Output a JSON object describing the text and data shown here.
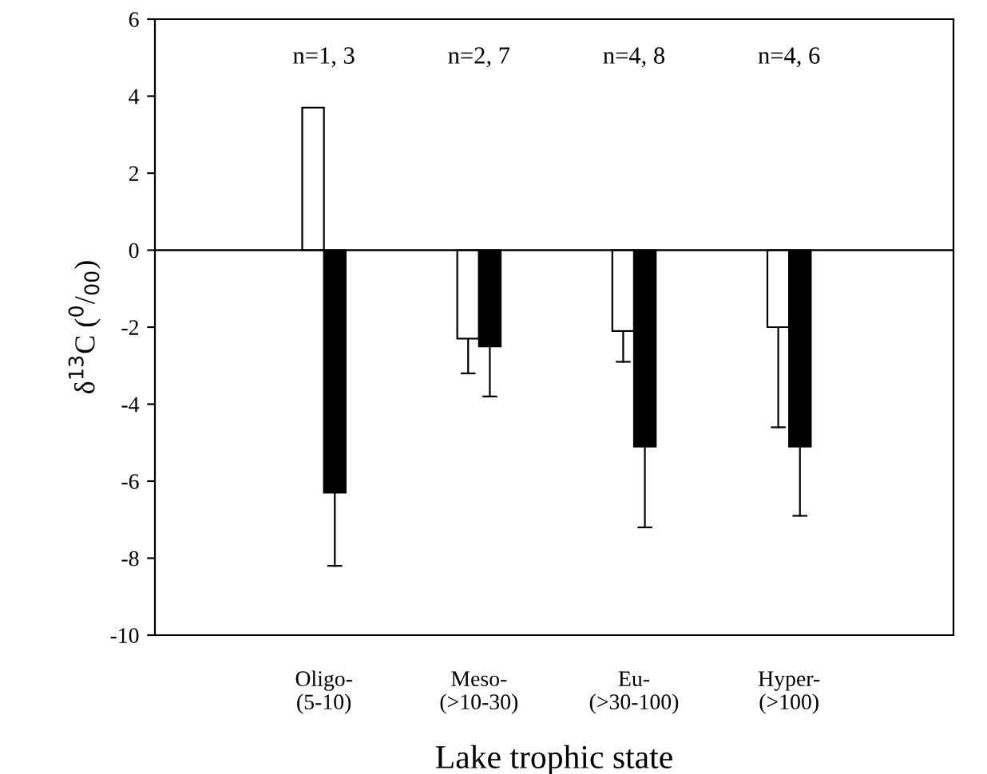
{
  "chart_data": {
    "type": "bar",
    "xlabel": "Lake trophic state",
    "ylabel": "δ$^{13}$C ($^{0}$/$_{00}$)",
    "categories": [
      "Oligo-\n(5-10)",
      "Meso-\n(>10-30)",
      "Eu-\n(>30-100)",
      "Hyper-\n(>100)"
    ],
    "series": [
      {
        "color": "#ffffff",
        "values": [
          3.7,
          -2.3,
          -2.1,
          -2.0
        ],
        "errors": [
          null,
          [
            -3.2,
            -2.3
          ],
          [
            -2.9,
            -2.1
          ],
          [
            -4.6,
            -2.0
          ]
        ]
      },
      {
        "color": "#000000",
        "values": [
          -6.3,
          -2.5,
          -5.1,
          -5.1
        ],
        "errors": [
          [
            -8.2,
            -6.3
          ],
          [
            -3.8,
            -2.5
          ],
          [
            -7.2,
            -5.1
          ],
          [
            -6.9,
            -5.1
          ]
        ]
      }
    ],
    "ylim": [
      -10,
      6
    ],
    "yticks": [
      -10,
      -8,
      -6,
      -4,
      -2,
      0,
      2,
      4,
      6
    ],
    "grid": false,
    "legend": false,
    "ref_lines": [
      {
        "axis": "y",
        "value": 0,
        "color": "#000000"
      }
    ],
    "annotations": [
      "n=1, 3",
      "n=2, 7",
      "n=4, 8",
      "n=4, 6"
    ]
  }
}
